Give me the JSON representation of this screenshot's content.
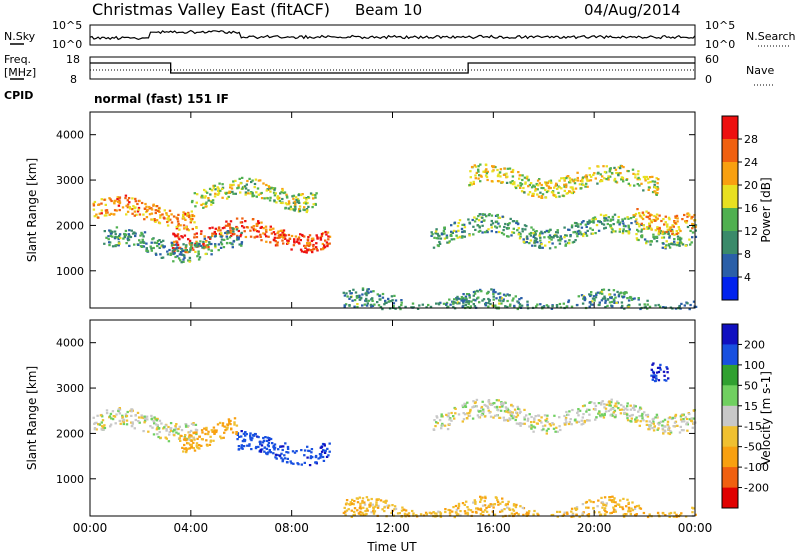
{
  "header": {
    "station": "Christmas Valley East (fitACF)",
    "beam": "Beam 10",
    "date": "04/Aug/2014"
  },
  "side_labels": {
    "nsky": "N.Sky",
    "nsearch": "N.Search",
    "freq": "Freq.",
    "freq_unit": "[MHz]",
    "nave": "Nave",
    "cpid": "CPID"
  },
  "cpid_text": "normal (fast) 151 IF",
  "noise_ticks_left": [
    "10^5",
    "10^0"
  ],
  "noise_ticks_right": [
    "10^5",
    "10^0"
  ],
  "freq_ticks_left": [
    "18",
    "8"
  ],
  "freq_ticks_right": [
    "60",
    "0"
  ],
  "colors": {
    "power": [
      "#0022ee",
      "#2a5fa8",
      "#3a8a6a",
      "#50b050",
      "#e8e020",
      "#f8a010",
      "#f06010",
      "#ee1010"
    ],
    "velocity": [
      "#1010c0",
      "#1850e0",
      "#30a030",
      "#70d060",
      "#c8c8c8",
      "#f0c030",
      "#f8a010",
      "#f06010",
      "#e00000"
    ]
  },
  "chart_data": [
    {
      "type": "heatmap",
      "title": "Power",
      "ylabel": "Slant Range [km]",
      "ylim": [
        180,
        4500
      ],
      "yticks": [
        1000,
        2000,
        3000,
        4000
      ],
      "xlim": [
        0,
        24
      ],
      "colorbar_label": "Power [dB]",
      "colorbar_ticks": [
        "4",
        "8",
        "12",
        "16",
        "20",
        "24",
        "28"
      ],
      "features": [
        {
          "t0": 0.1,
          "t1": 4.2,
          "range": 2300,
          "v": 0.75
        },
        {
          "t0": 3.2,
          "t1": 9.5,
          "range": 1800,
          "v": 0.9
        },
        {
          "t0": 4.0,
          "t1": 9.0,
          "range": 2700,
          "v": 0.5
        },
        {
          "t0": 0.5,
          "t1": 6.0,
          "range": 1600,
          "v": 0.3
        },
        {
          "t0": 13.5,
          "t1": 24,
          "range": 1900,
          "v": 0.35
        },
        {
          "t0": 15.0,
          "t1": 22.5,
          "range": 3000,
          "v": 0.55
        },
        {
          "t0": 21.5,
          "t1": 24,
          "range": 2200,
          "v": 0.7
        },
        {
          "t0": 10.0,
          "t1": 24,
          "range": 250,
          "v": 0.3
        }
      ]
    },
    {
      "type": "heatmap",
      "title": "Velocity",
      "ylabel": "Slant Range [km]",
      "ylim": [
        180,
        4500
      ],
      "yticks": [
        1000,
        2000,
        3000,
        4000
      ],
      "xlim": [
        0,
        24
      ],
      "xlabel": "Time UT",
      "xticks": [
        "00:00",
        "04:00",
        "08:00",
        "12:00",
        "16:00",
        "20:00",
        "00:00"
      ],
      "colorbar_label": "Velocity [m s-1]",
      "colorbar_ticks": [
        "200",
        "100",
        "50",
        "15",
        "-15",
        "-50",
        "-100",
        "-200"
      ],
      "features": [
        {
          "t0": 0.1,
          "t1": 4.2,
          "range": 2200,
          "v": 0
        },
        {
          "t0": 5.8,
          "t1": 9.5,
          "range": 1700,
          "v": 180
        },
        {
          "t0": 3.5,
          "t1": 5.8,
          "range": 2000,
          "v": -60
        },
        {
          "t0": 13.5,
          "t1": 24,
          "range": 2400,
          "v": 0
        },
        {
          "t0": 22.2,
          "t1": 22.9,
          "range": 3500,
          "v": 200
        },
        {
          "t0": 10.0,
          "t1": 24,
          "range": 250,
          "v": -40
        }
      ]
    }
  ]
}
